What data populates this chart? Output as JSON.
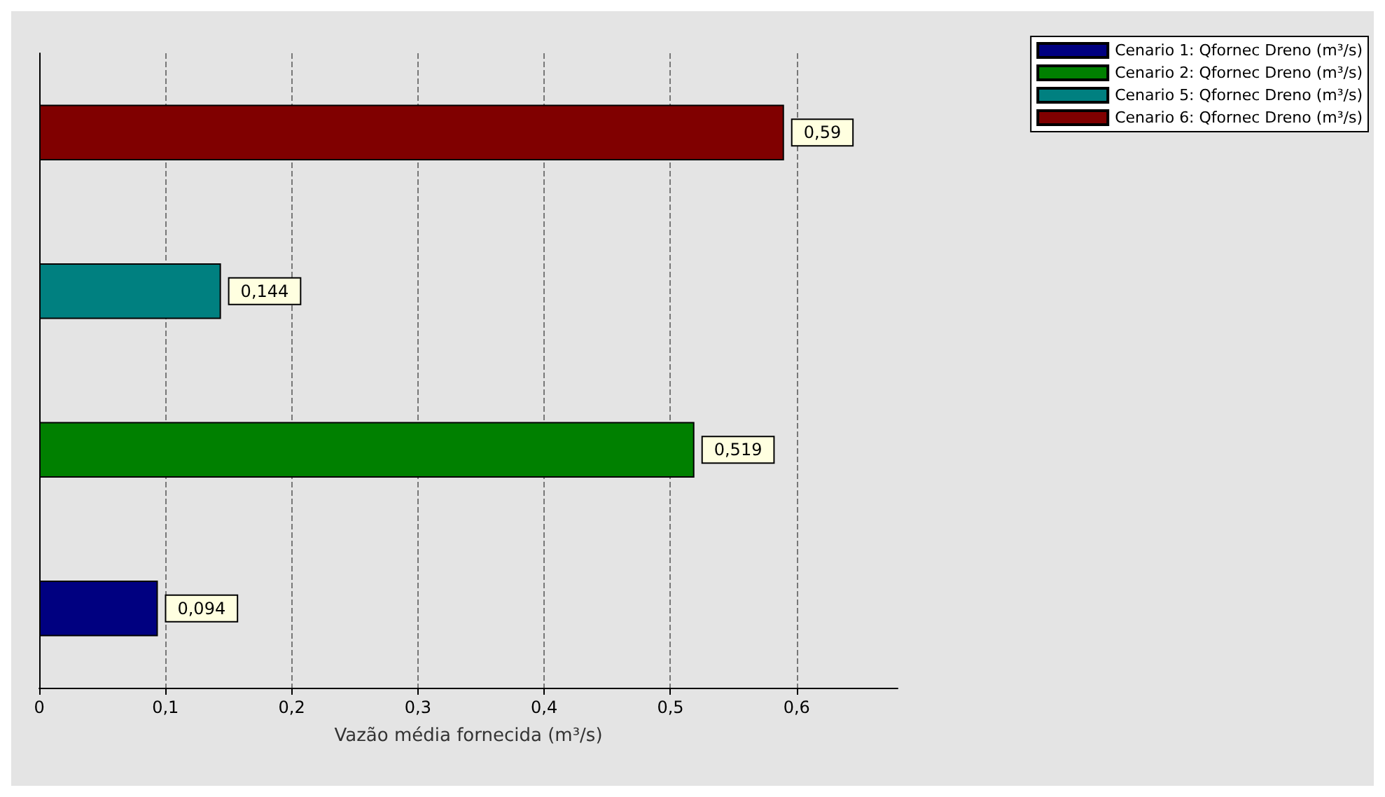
{
  "chart_data": {
    "type": "bar",
    "orientation": "horizontal",
    "stacked": true,
    "xlabel": "Vazão média fornecida (m³/s)",
    "categories": [
      null,
      null,
      null,
      null
    ],
    "series": [
      {
        "name": "Cenario 1: Qfornec Dreno (m³/s)",
        "color": "#000080",
        "values": [
          null,
          null,
          null,
          0.094
        ],
        "value_labels": [
          null,
          null,
          null,
          "0,094"
        ]
      },
      {
        "name": "Cenario 2: Qfornec Dreno (m³/s)",
        "color": "#008000",
        "values": [
          null,
          null,
          0.519,
          null
        ],
        "value_labels": [
          null,
          null,
          "0,519",
          null
        ]
      },
      {
        "name": "Cenario 5: Qfornec Dreno (m³/s)",
        "color": "#008080",
        "values": [
          null,
          0.144,
          null,
          null
        ],
        "value_labels": [
          null,
          "0,144",
          null,
          null
        ]
      },
      {
        "name": "Cenario 6: Qfornec Dreno (m³/s)",
        "color": "#800000",
        "values": [
          0.59,
          null,
          null,
          null
        ],
        "value_labels": [
          "0,59",
          null,
          null,
          null
        ]
      }
    ],
    "xlim": [
      0,
      0.68
    ],
    "xticks": [
      0,
      {
        "value": 0.1,
        "label": "0,1"
      },
      {
        "value": 0.2,
        "label": "0,2"
      },
      {
        "value": 0.3,
        "label": "0,3"
      },
      {
        "value": 0.4,
        "label": "0,4"
      },
      {
        "value": 0.5,
        "label": "0,5"
      },
      {
        "value": 0.6,
        "label": "0,6"
      }
    ],
    "grid": "x",
    "legend": "top right"
  }
}
